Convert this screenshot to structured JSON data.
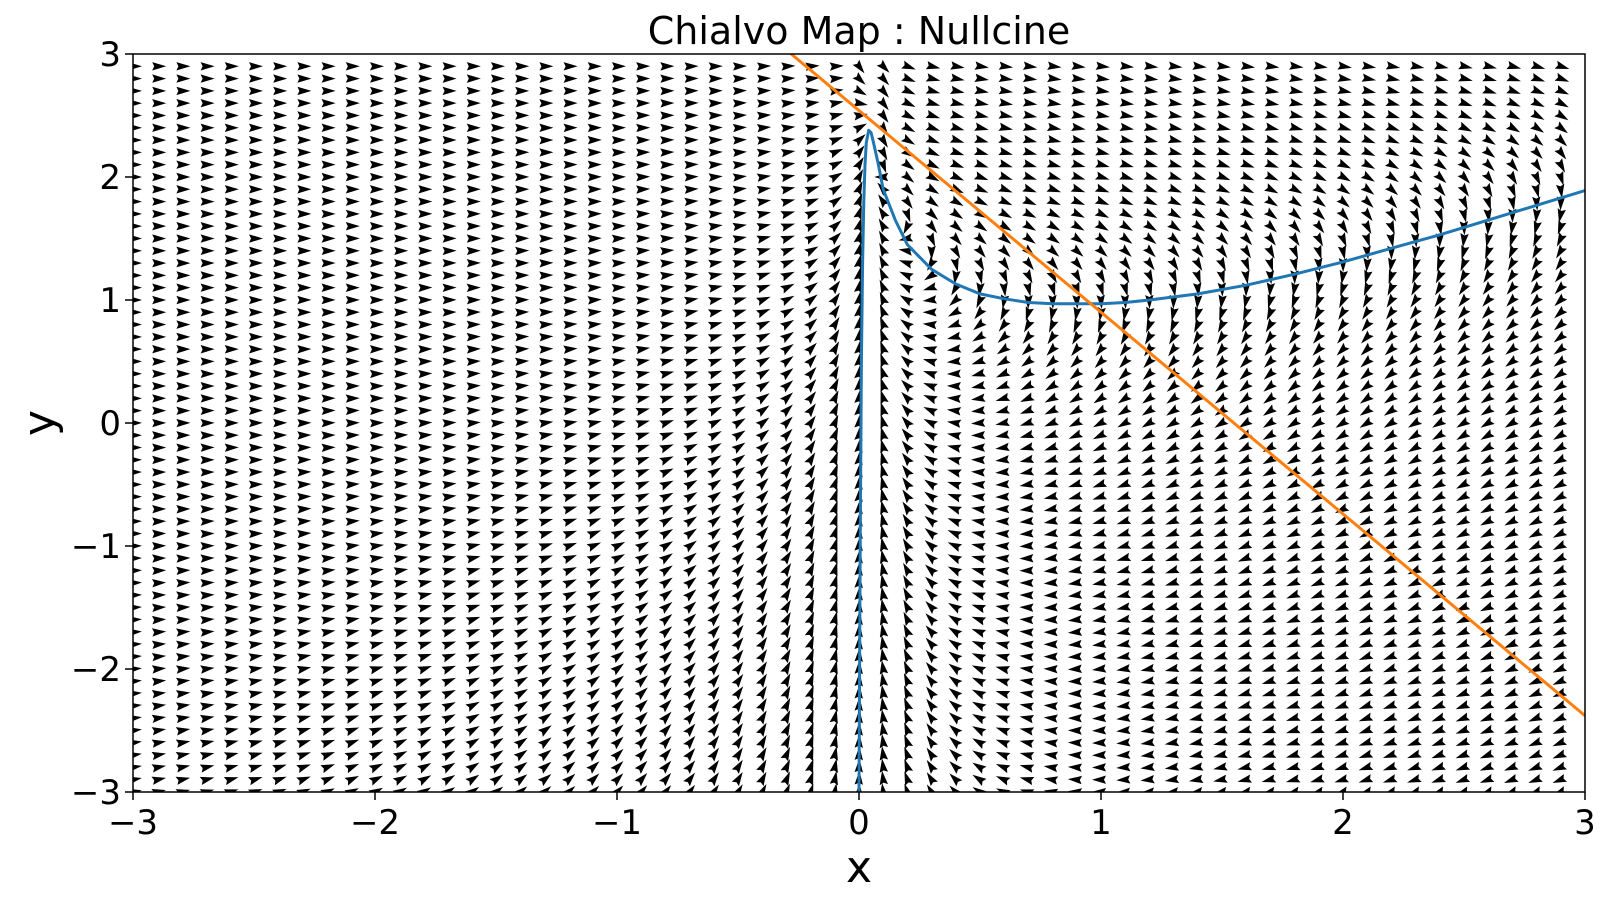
{
  "chart_data": {
    "type": "line",
    "title": "Chialvo Map : Nullcine",
    "xlabel": "x",
    "ylabel": "y",
    "xlim": [
      -3,
      3
    ],
    "ylim": [
      -3,
      3
    ],
    "grid": false,
    "x_ticks": [
      -3,
      -2,
      -1,
      0,
      1,
      2,
      3
    ],
    "y_ticks": [
      -3,
      -2,
      -1,
      0,
      1,
      2,
      3
    ],
    "x_tick_labels": [
      "−3",
      "−2",
      "−1",
      "0",
      "1",
      "2",
      "3"
    ],
    "y_tick_labels": [
      "−3",
      "−2",
      "−1",
      "0",
      "1",
      "2",
      "3"
    ],
    "background": "vector field (quiver) of the map, black arrows on a regular grid",
    "colors": {
      "series_1": "#1f77b4",
      "series_2": "#ff7f0e",
      "arrows": "#000000"
    },
    "series": [
      {
        "color": "#1f77b4",
        "x": [
          0.0,
          0.005,
          0.01,
          0.015,
          0.02,
          0.025,
          0.03,
          0.04,
          0.05,
          0.06,
          0.08,
          0.1,
          0.15,
          0.2,
          0.3,
          0.4,
          0.5,
          0.6,
          0.7,
          0.8,
          0.9,
          1.0,
          1.1,
          1.2,
          1.4,
          1.6,
          1.8,
          2.0,
          2.2,
          2.4,
          2.6,
          2.8,
          3.0
        ],
        "y": [
          -3.0,
          -1.0,
          0.5,
          1.3,
          1.8,
          2.1,
          2.28,
          2.38,
          2.36,
          2.28,
          2.1,
          1.9,
          1.65,
          1.45,
          1.25,
          1.13,
          1.05,
          1.01,
          0.98,
          0.97,
          0.97,
          0.97,
          0.98,
          1.0,
          1.05,
          1.12,
          1.21,
          1.31,
          1.42,
          1.53,
          1.65,
          1.77,
          1.89
        ]
      },
      {
        "color": "#ff7f0e",
        "x": [
          -0.28,
          3.0
        ],
        "y": [
          3.0,
          -2.38
        ]
      }
    ]
  }
}
